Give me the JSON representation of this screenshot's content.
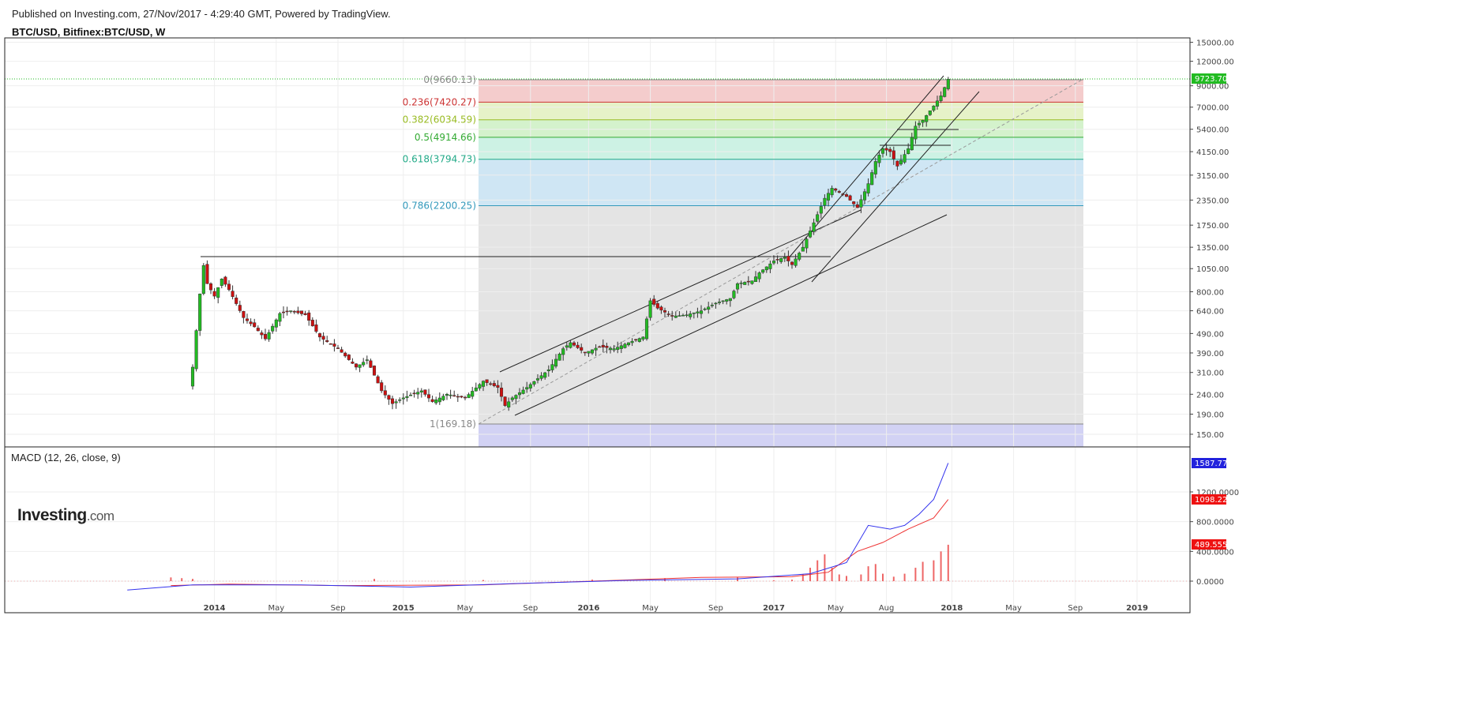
{
  "header": {
    "published": "Published on Investing.com, 27/Nov/2017 - 4:29:40 GMT, Powered by TradingView.",
    "symbol": "BTC/USD, Bitfinex:BTC/USD, W"
  },
  "logo": {
    "brand": "Investing",
    "domain": ".com"
  },
  "colors": {
    "up": "#22bb22",
    "down": "#cc1111",
    "macd_line": "#3333ee",
    "signal_line": "#ee3333",
    "hist": "#ee6666",
    "grid": "#eeeeee"
  },
  "chart_data": [
    {
      "type": "candlestick",
      "scale": "log",
      "title": "BTC/USD, Bitfinex:BTC/USD, W",
      "x_tick_labels": [
        "2014",
        "May",
        "Sep",
        "2015",
        "May",
        "Sep",
        "2016",
        "May",
        "Sep",
        "2017",
        "May",
        "Aug",
        "2018",
        "May",
        "Sep",
        "2019"
      ],
      "y_tick_labels": [
        "15000.00",
        "12000.00",
        "9000.00",
        "7000.00",
        "5400.00",
        "4150.00",
        "3150.00",
        "2350.00",
        "1750.00",
        "1350.00",
        "1050.00",
        "800.00",
        "640.00",
        "490.00",
        "390.00",
        "310.00",
        "240.00",
        "190.00",
        "150.00"
      ],
      "last_price": "9723.70",
      "fibonacci": [
        {
          "label": "0(9660.13)",
          "level": 9660.13,
          "color": "#888888"
        },
        {
          "label": "0.236(7420.27)",
          "level": 7420.27,
          "color": "#cc3333"
        },
        {
          "label": "0.382(6034.59)",
          "level": 6034.59,
          "color": "#99bb22"
        },
        {
          "label": "0.5(4914.66)",
          "level": 4914.66,
          "color": "#33aa33"
        },
        {
          "label": "0.618(3794.73)",
          "level": 3794.73,
          "color": "#22aa88"
        },
        {
          "label": "0.786(2200.25)",
          "level": 2200.25,
          "color": "#3399bb"
        },
        {
          "label": "1(169.18)",
          "level": 169.18,
          "color": "#888888"
        }
      ],
      "weekly_close_path": [
        [
          0,
          330
        ],
        [
          2,
          780
        ],
        [
          3,
          1090
        ],
        [
          4,
          880
        ],
        [
          6,
          760
        ],
        [
          8,
          930
        ],
        [
          10,
          820
        ],
        [
          14,
          590
        ],
        [
          17,
          530
        ],
        [
          20,
          460
        ],
        [
          24,
          620
        ],
        [
          27,
          640
        ],
        [
          31,
          610
        ],
        [
          35,
          470
        ],
        [
          40,
          410
        ],
        [
          45,
          330
        ],
        [
          48,
          360
        ],
        [
          52,
          250
        ],
        [
          55,
          215
        ],
        [
          58,
          230
        ],
        [
          63,
          250
        ],
        [
          66,
          220
        ],
        [
          70,
          240
        ],
        [
          75,
          230
        ],
        [
          80,
          280
        ],
        [
          84,
          260
        ],
        [
          86,
          210
        ],
        [
          88,
          230
        ],
        [
          92,
          260
        ],
        [
          98,
          320
        ],
        [
          102,
          410
        ],
        [
          104,
          440
        ],
        [
          108,
          390
        ],
        [
          112,
          420
        ],
        [
          116,
          410
        ],
        [
          120,
          440
        ],
        [
          124,
          470
        ],
        [
          126,
          720
        ],
        [
          128,
          660
        ],
        [
          132,
          600
        ],
        [
          136,
          610
        ],
        [
          140,
          640
        ],
        [
          144,
          700
        ],
        [
          148,
          740
        ],
        [
          150,
          880
        ],
        [
          154,
          910
        ],
        [
          156,
          1000
        ],
        [
          160,
          1150
        ],
        [
          163,
          1200
        ],
        [
          165,
          1100
        ],
        [
          168,
          1350
        ],
        [
          171,
          1800
        ],
        [
          174,
          2400
        ],
        [
          176,
          2700
        ],
        [
          180,
          2450
        ],
        [
          183,
          2150
        ],
        [
          186,
          2850
        ],
        [
          188,
          3700
        ],
        [
          190,
          4300
        ],
        [
          192,
          4150
        ],
        [
          194,
          3500
        ],
        [
          197,
          4300
        ],
        [
          199,
          5600
        ],
        [
          201,
          6000
        ],
        [
          204,
          7100
        ],
        [
          206,
          8000
        ],
        [
          208,
          9723.7
        ]
      ]
    },
    {
      "type": "line",
      "title": "MACD (12, 26, close, 9)",
      "y_tick_labels": [
        "1200.0000",
        "800.0000",
        "400.0000",
        "0.0000"
      ],
      "series": [
        {
          "name": "MACD",
          "last": "1587.7797",
          "points": [
            [
              -18,
              -120
            ],
            [
              0,
              -50
            ],
            [
              30,
              -50
            ],
            [
              60,
              -80
            ],
            [
              90,
              -30
            ],
            [
              120,
              10
            ],
            [
              150,
              30
            ],
            [
              170,
              100
            ],
            [
              180,
              250
            ],
            [
              186,
              750
            ],
            [
              192,
              700
            ],
            [
              196,
              750
            ],
            [
              200,
              900
            ],
            [
              204,
              1100
            ],
            [
              208,
              1587.78
            ]
          ]
        },
        {
          "name": "Signal",
          "last": "1098.2239",
          "points": [
            [
              -6,
              -60
            ],
            [
              10,
              -40
            ],
            [
              40,
              -60
            ],
            [
              80,
              -50
            ],
            [
              110,
              0
            ],
            [
              140,
              50
            ],
            [
              165,
              60
            ],
            [
              175,
              120
            ],
            [
              183,
              400
            ],
            [
              190,
              520
            ],
            [
              197,
              700
            ],
            [
              204,
              850
            ],
            [
              208,
              1098.22
            ]
          ]
        },
        {
          "name": "Histogram",
          "last": "489.5558",
          "bars": [
            [
              -6,
              50
            ],
            [
              -3,
              40
            ],
            [
              0,
              30
            ],
            [
              30,
              10
            ],
            [
              50,
              30
            ],
            [
              80,
              15
            ],
            [
              110,
              20
            ],
            [
              130,
              40
            ],
            [
              150,
              50
            ],
            [
              160,
              10
            ],
            [
              165,
              20
            ],
            [
              168,
              90
            ],
            [
              170,
              180
            ],
            [
              172,
              280
            ],
            [
              174,
              360
            ],
            [
              176,
              180
            ],
            [
              178,
              90
            ],
            [
              180,
              70
            ],
            [
              184,
              90
            ],
            [
              186,
              200
            ],
            [
              188,
              230
            ],
            [
              190,
              100
            ],
            [
              193,
              60
            ],
            [
              196,
              100
            ],
            [
              199,
              180
            ],
            [
              201,
              260
            ],
            [
              204,
              280
            ],
            [
              206,
              400
            ],
            [
              208,
              489.56
            ]
          ]
        }
      ]
    }
  ]
}
